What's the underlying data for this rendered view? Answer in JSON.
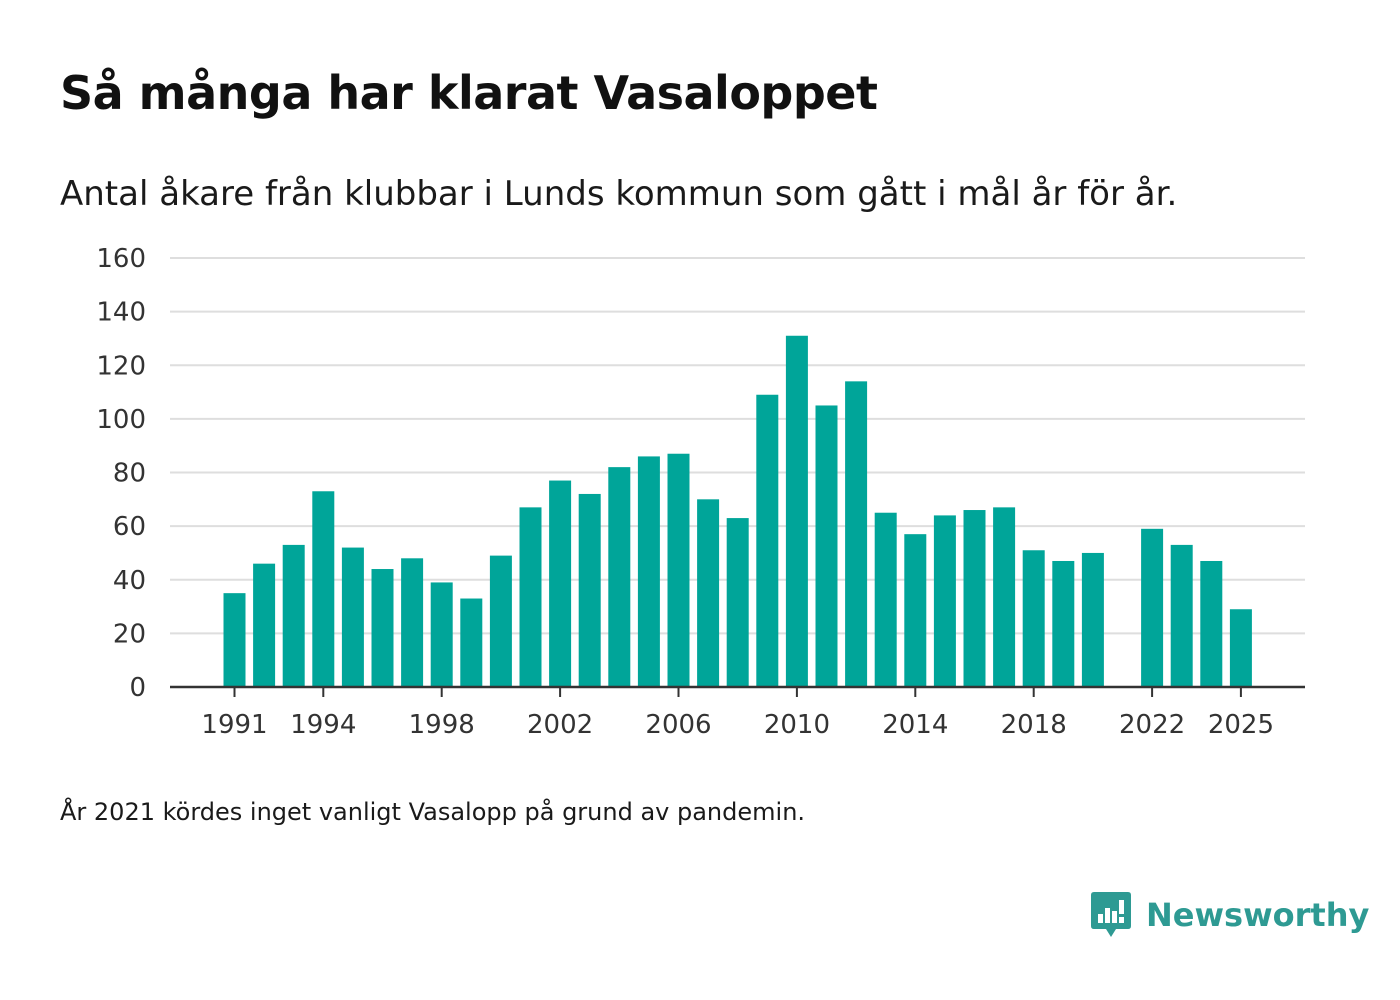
{
  "chart_data": {
    "type": "bar",
    "title": "Så många har klarat Vasaloppet",
    "subtitle": "Antal åkare från klubbar i Lunds kommun som gått i mål år för år.",
    "xlabel": "",
    "ylabel": "",
    "categories": [
      1991,
      1992,
      1993,
      1994,
      1995,
      1996,
      1997,
      1998,
      1999,
      2000,
      2001,
      2002,
      2003,
      2004,
      2005,
      2006,
      2007,
      2008,
      2009,
      2010,
      2011,
      2012,
      2013,
      2014,
      2015,
      2016,
      2017,
      2018,
      2019,
      2020,
      2021,
      2022,
      2023,
      2024,
      2025
    ],
    "values": [
      35,
      46,
      53,
      73,
      52,
      44,
      48,
      39,
      33,
      49,
      67,
      77,
      72,
      82,
      86,
      87,
      70,
      63,
      109,
      131,
      105,
      114,
      65,
      57,
      64,
      66,
      67,
      51,
      47,
      50,
      null,
      59,
      53,
      47,
      29
    ],
    "x_tick_labels": [
      "1991",
      "1994",
      "1998",
      "2002",
      "2006",
      "2010",
      "2014",
      "2018",
      "2022",
      "2025"
    ],
    "y_ticks": [
      0,
      20,
      40,
      60,
      80,
      100,
      120,
      140,
      160
    ],
    "ylim": [
      0,
      160
    ],
    "grid": true,
    "color": "#00a599"
  },
  "note": "År 2021 kördes inget vanligt Vasalopp på grund av pandemin.",
  "brand": {
    "name": "Newsworthy",
    "icon": "newsworthy-logo-icon",
    "color": "#2e9a93"
  }
}
